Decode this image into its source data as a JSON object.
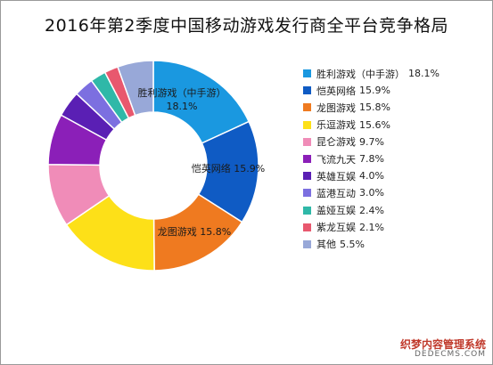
{
  "chart_data": {
    "type": "pie",
    "title": "2016年第2季度中国移动游戏发行商全平台竞争格局",
    "colors": [
      "#1a98e0",
      "#0f5bc4",
      "#ef7a20",
      "#fde018",
      "#f08cb8",
      "#8b1fb8",
      "#5a1fb4",
      "#7c6fe0",
      "#2fb8a8",
      "#e8586e",
      "#98a8d8"
    ],
    "slices": [
      {
        "name": "胜利游戏（中手游）",
        "value": 18.1,
        "value_label": "18.1%"
      },
      {
        "name": "恺英网络",
        "value": 15.9,
        "value_label": "15.9%"
      },
      {
        "name": "龙图游戏",
        "value": 15.8,
        "value_label": "15.8%"
      },
      {
        "name": "乐逗游戏",
        "value": 15.6,
        "value_label": "15.6%"
      },
      {
        "name": "昆仑游戏",
        "value": 9.7,
        "value_label": "9.7%"
      },
      {
        "name": "飞流九天",
        "value": 7.8,
        "value_label": "7.8%"
      },
      {
        "name": "英雄互娱",
        "value": 4.0,
        "value_label": "4.0%"
      },
      {
        "name": "蓝港互动",
        "value": 3.0,
        "value_label": "3.0%"
      },
      {
        "name": "盖娅互娱",
        "value": 2.4,
        "value_label": "2.4%"
      },
      {
        "name": "紫龙互娱",
        "value": 2.1,
        "value_label": "2.1%"
      },
      {
        "name": "其他",
        "value": 5.5,
        "value_label": "5.5%"
      }
    ],
    "data_labels": [
      {
        "text": "胜利游戏（中手游）"
      },
      {
        "text": "18.1%"
      },
      {
        "text": "恺英网络 15.9%"
      },
      {
        "text": "龙图游戏 15.8%"
      }
    ],
    "legend_position": "right"
  },
  "watermark": {
    "line1": "织梦内容管理系统",
    "line2": "DEDECMS.COM"
  }
}
